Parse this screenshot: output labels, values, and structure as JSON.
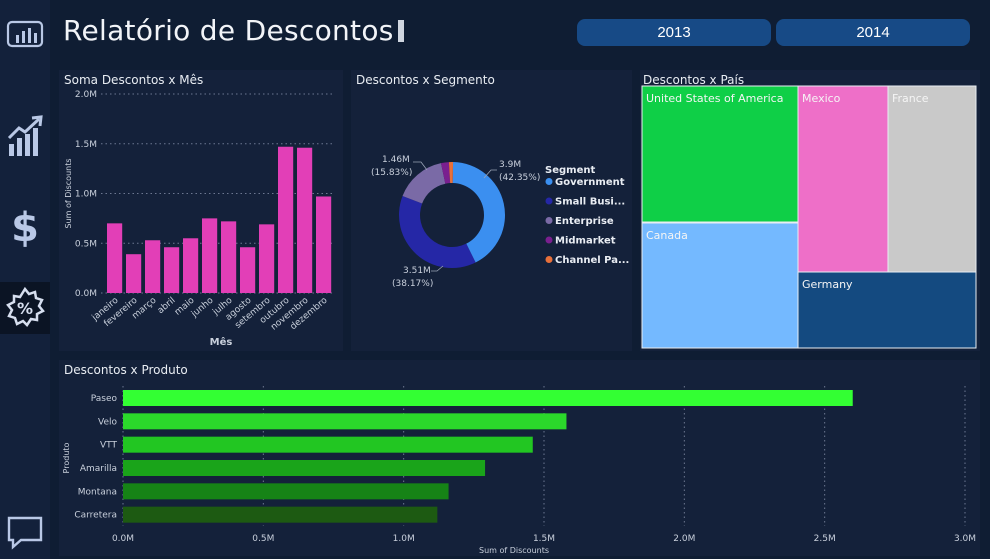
{
  "header": {
    "title": "Relatório de Descontos",
    "year_buttons": [
      "2013",
      "2014"
    ]
  },
  "sidebar": {
    "items": [
      {
        "icon": "report-icon"
      },
      {
        "icon": "growth-chart-icon"
      },
      {
        "icon": "dollar-icon"
      },
      {
        "icon": "discount-badge-icon",
        "active": true
      },
      {
        "icon": "chat-icon"
      }
    ]
  },
  "panels": {
    "month_title": "Soma Descontos x Mês",
    "segment_title": "Descontos x Segmento",
    "country_title": "Descontos x País",
    "product_title": "Descontos x Produto"
  },
  "colors": {
    "background": "#0f1d33",
    "panel": "#14213a",
    "pink": "#e23fb7",
    "green_bright": "#33ff33",
    "year_button": "#174a86"
  },
  "chart_data": [
    {
      "type": "bar",
      "title": "Soma Descontos x Mês",
      "xlabel": "Mês",
      "ylabel": "Sum of Discounts",
      "categories": [
        "janeiro",
        "fevereiro",
        "março",
        "abril",
        "maio",
        "junho",
        "julho",
        "agosto",
        "setembro",
        "outubro",
        "novembro",
        "dezembro"
      ],
      "values": [
        0.7,
        0.39,
        0.53,
        0.46,
        0.55,
        0.75,
        0.72,
        0.46,
        0.69,
        1.47,
        1.46,
        0.97
      ],
      "ylim": [
        0,
        2.0
      ],
      "yticks": [
        "0.0M",
        "0.5M",
        "1.0M",
        "1.5M",
        "2.0M"
      ],
      "grid": true,
      "color": "#e23fb7"
    },
    {
      "type": "pie",
      "title": "Descontos x Segmento",
      "legend_title": "Segment",
      "labels": [
        "Government",
        "Small Busi...",
        "Enterprise",
        "Midmarket",
        "Channel Pa..."
      ],
      "values": [
        42.35,
        38.17,
        15.83,
        2.4,
        1.25
      ],
      "colors": [
        "#3b8ff0",
        "#2527a6",
        "#7a6aa6",
        "#7a1f8f",
        "#e8703a"
      ],
      "data_labels": [
        {
          "value": "3.9M",
          "pct": "(42.35%)"
        },
        {
          "value": "3.51M",
          "pct": "(38.17%)"
        },
        {
          "value": "1.46M",
          "pct": "(15.83%)"
        }
      ]
    },
    {
      "type": "heatmap",
      "title": "Descontos x País",
      "labels": [
        "United States of America",
        "Canada",
        "Mexico",
        "France",
        "Germany"
      ],
      "colors": [
        "#0fcf47",
        "#74b9ff",
        "#ee6fc8",
        "#c9c9c9",
        "#144a80"
      ]
    },
    {
      "type": "bar",
      "orientation": "horizontal",
      "title": "Descontos x Produto",
      "xlabel": "Sum of Discounts",
      "ylabel": "Produto",
      "categories": [
        "Paseo",
        "Velo",
        "VTT",
        "Amarilla",
        "Montana",
        "Carretera"
      ],
      "values": [
        2.6,
        1.58,
        1.46,
        1.29,
        1.16,
        1.12
      ],
      "xlim": [
        0,
        3.0
      ],
      "xticks": [
        "0.0M",
        "0.5M",
        "1.0M",
        "1.5M",
        "2.0M",
        "2.5M",
        "3.0M"
      ],
      "colors": [
        "#33ff33",
        "#2bd82b",
        "#22c622",
        "#1aa41a",
        "#168316",
        "#1d5a12"
      ]
    }
  ]
}
